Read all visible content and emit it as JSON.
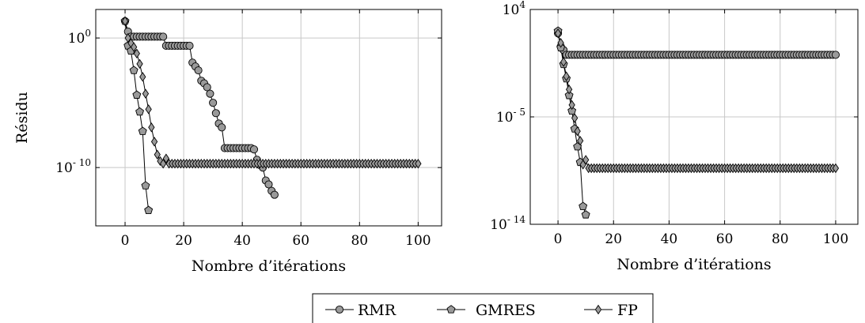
{
  "chart_data": [
    {
      "type": "line",
      "ylabel": "Résidu",
      "xlabel": "Nombre d’itérations",
      "x_ticks": [
        "0",
        "20",
        "40",
        "60",
        "80",
        "100"
      ],
      "y_scale": "log",
      "y_ticks": [
        {
          "value": 0,
          "base": "10",
          "exp": "0"
        },
        {
          "value": -10,
          "base": "10",
          "exp": "- 10"
        }
      ],
      "xlim": [
        -10,
        108
      ],
      "ylim_log10": [
        -14.5,
        2.2
      ],
      "grid": true,
      "series": [
        {
          "name": "RMR",
          "marker": "circle",
          "x": [
            0,
            1,
            2,
            3,
            4,
            5,
            6,
            7,
            8,
            9,
            10,
            11,
            12,
            13,
            14,
            15,
            16,
            17,
            18,
            19,
            20,
            21,
            22,
            23,
            24,
            25,
            26,
            27,
            28,
            29,
            30,
            31,
            32,
            33,
            34,
            35,
            36,
            37,
            38,
            39,
            40,
            41,
            42,
            43,
            44,
            45,
            46,
            47,
            48,
            49,
            50,
            51
          ],
          "y_log10": [
            1.3,
            0.5,
            0.1,
            0.1,
            0.1,
            0.1,
            0.1,
            0.1,
            0.1,
            0.1,
            0.1,
            0.1,
            0.1,
            0.1,
            -0.6,
            -0.6,
            -0.6,
            -0.6,
            -0.6,
            -0.6,
            -0.6,
            -0.6,
            -0.6,
            -1.9,
            -2.2,
            -2.5,
            -3.3,
            -3.5,
            -3.8,
            -4.3,
            -5.0,
            -5.8,
            -6.6,
            -6.9,
            -8.5,
            -8.5,
            -8.5,
            -8.5,
            -8.5,
            -8.5,
            -8.5,
            -8.5,
            -8.5,
            -8.5,
            -8.6,
            -9.4,
            -9.8,
            -10.0,
            -11.0,
            -11.3,
            -11.8,
            -12.1
          ]
        },
        {
          "name": "GMRES",
          "marker": "pentagon",
          "x": [
            0,
            1,
            2,
            3,
            4,
            5,
            6,
            7,
            8
          ],
          "y_log10": [
            1.3,
            -0.6,
            -1.0,
            -2.5,
            -4.4,
            -5.7,
            -7.2,
            -11.4,
            -13.3
          ]
        },
        {
          "name": "FP",
          "marker": "diamond",
          "x_start": 0,
          "x_end": 100,
          "y_log10_head": [
            1.3,
            0.0,
            -0.4,
            -0.7,
            -1.2,
            -2.0,
            -3.0,
            -4.3,
            -5.5,
            -6.9,
            -8.0,
            -9.0,
            -9.5,
            -9.7,
            -9.3
          ],
          "y_log10_plateau": -9.7
        }
      ]
    },
    {
      "type": "line",
      "xlabel": "Nombre d’itérations",
      "x_ticks": [
        "0",
        "20",
        "40",
        "60",
        "80",
        "100"
      ],
      "y_scale": "log",
      "y_ticks": [
        {
          "value": 4,
          "base": "10",
          "exp": "4"
        },
        {
          "value": -5,
          "base": "10",
          "exp": "- 5"
        },
        {
          "value": -14,
          "base": "10",
          "exp": "- 14"
        }
      ],
      "xlim": [
        -10,
        108
      ],
      "ylim_log10": [
        -14,
        4
      ],
      "grid": true,
      "series": [
        {
          "name": "RMR",
          "marker": "circle",
          "x_start": 0,
          "x_end": 100,
          "y_log10_head": [
            2.0,
            0.9,
            0.6
          ],
          "y_log10_plateau": 0.2
        },
        {
          "name": "GMRES",
          "marker": "pentagon",
          "x": [
            0,
            1,
            2,
            3,
            4,
            5,
            6,
            7,
            8,
            9,
            10
          ],
          "y_log10": [
            2.2,
            0.8,
            -0.6,
            -1.8,
            -3.2,
            -4.5,
            -6.0,
            -7.5,
            -8.8,
            -12.5,
            -13.2
          ]
        },
        {
          "name": "FP",
          "marker": "diamond",
          "x_start": 0,
          "x_end": 100,
          "y_log10_head": [
            2.0,
            1.2,
            -0.4,
            -1.6,
            -2.7,
            -4.0,
            -5.1,
            -6.2,
            -7.0,
            -9.0,
            -8.6
          ],
          "y_log10_plateau": -9.3
        }
      ]
    }
  ],
  "legend": {
    "position": "bottom-center",
    "items": [
      {
        "label": "RMR",
        "marker": "circle"
      },
      {
        "label": "GMRES",
        "marker": "pentagon"
      },
      {
        "label": "FP",
        "marker": "diamond"
      }
    ]
  }
}
